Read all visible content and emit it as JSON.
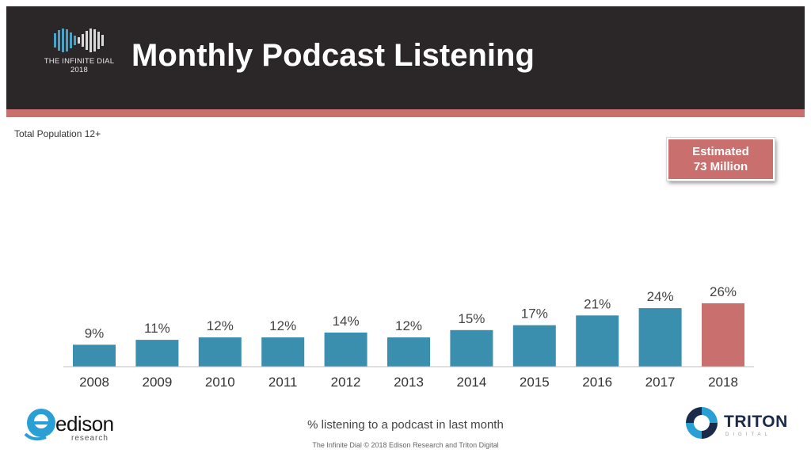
{
  "header": {
    "title": "Monthly Podcast Listening",
    "logo_line1": "THE INFINITE DIAL",
    "logo_line2": "2018"
  },
  "subtitle": "Total Population 12+",
  "callout": {
    "line1": "Estimated",
    "line2": "73 Million"
  },
  "footer": {
    "caption": "% listening to a podcast in last month",
    "note": "The Infinite Dial   © 2018 Edison Research and Triton Digital",
    "edison_word": "edison",
    "edison_sub": "research",
    "triton_word": "TRITON",
    "triton_sub": "DIGITAL"
  },
  "colors": {
    "header_bg": "#2b2627",
    "accent": "#c9706f",
    "bar": "#3a8fae",
    "highlight_bar": "#c9706f"
  },
  "chart_data": {
    "type": "bar",
    "categories": [
      "2008",
      "2009",
      "2010",
      "2011",
      "2012",
      "2013",
      "2014",
      "2015",
      "2016",
      "2017",
      "2018"
    ],
    "values": [
      9,
      11,
      12,
      12,
      14,
      12,
      15,
      17,
      21,
      24,
      26
    ],
    "data_labels": [
      "9%",
      "11%",
      "12%",
      "12%",
      "14%",
      "12%",
      "15%",
      "17%",
      "21%",
      "24%",
      "26%"
    ],
    "highlight_index": 10,
    "title": "",
    "xlabel": "",
    "ylabel": "",
    "ylim": [
      0,
      100
    ],
    "grid": false
  }
}
